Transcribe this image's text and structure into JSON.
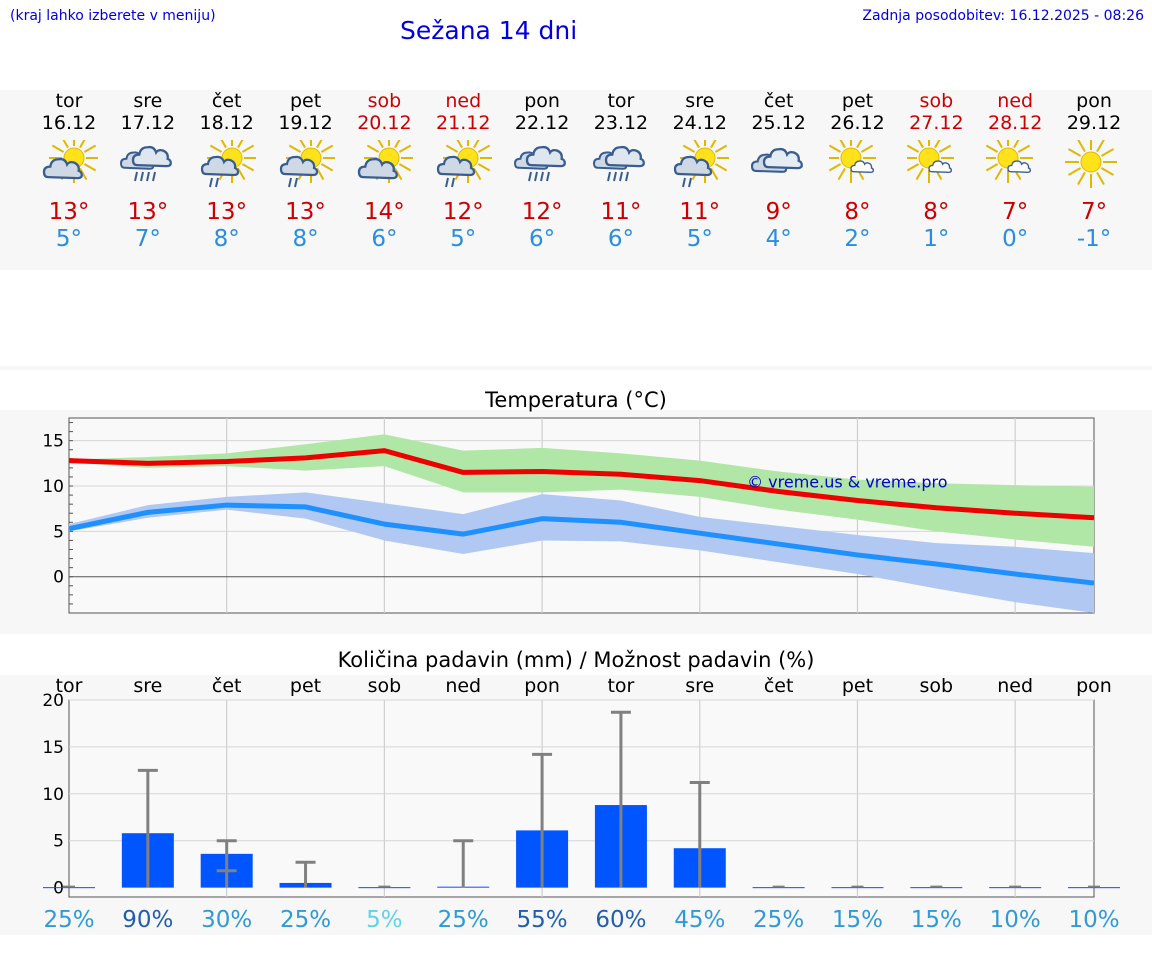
{
  "header": {
    "menu_hint": "(kraj lahko izberete v meniju)",
    "title": "Sežana 14 dni",
    "updated": "Zadnja posodobitev: 16.12.2025 - 08:26"
  },
  "days": [
    {
      "name": "tor",
      "date": "16.12",
      "weekend": false,
      "icon": "sun-cloud-icon",
      "max": "13°",
      "min": "5°"
    },
    {
      "name": "sre",
      "date": "17.12",
      "weekend": false,
      "icon": "rain-cloud-icon",
      "max": "13°",
      "min": "7°"
    },
    {
      "name": "čet",
      "date": "18.12",
      "weekend": false,
      "icon": "sun-rain-icon",
      "max": "13°",
      "min": "8°"
    },
    {
      "name": "pet",
      "date": "19.12",
      "weekend": false,
      "icon": "sun-rain-icon",
      "max": "13°",
      "min": "8°"
    },
    {
      "name": "sob",
      "date": "20.12",
      "weekend": true,
      "icon": "sun-cloud-icon",
      "max": "14°",
      "min": "6°"
    },
    {
      "name": "ned",
      "date": "21.12",
      "weekend": true,
      "icon": "sun-rain-icon",
      "max": "12°",
      "min": "5°"
    },
    {
      "name": "pon",
      "date": "22.12",
      "weekend": false,
      "icon": "rain-cloud-icon",
      "max": "12°",
      "min": "6°"
    },
    {
      "name": "tor",
      "date": "23.12",
      "weekend": false,
      "icon": "rain-cloud-icon",
      "max": "11°",
      "min": "6°"
    },
    {
      "name": "sre",
      "date": "24.12",
      "weekend": false,
      "icon": "sun-rain-icon",
      "max": "11°",
      "min": "5°"
    },
    {
      "name": "čet",
      "date": "25.12",
      "weekend": false,
      "icon": "cloud-icon",
      "max": "9°",
      "min": "4°"
    },
    {
      "name": "pet",
      "date": "26.12",
      "weekend": false,
      "icon": "sun-small-cloud-icon",
      "max": "8°",
      "min": "2°"
    },
    {
      "name": "sob",
      "date": "27.12",
      "weekend": true,
      "icon": "sun-small-cloud-icon",
      "max": "8°",
      "min": "1°"
    },
    {
      "name": "ned",
      "date": "28.12",
      "weekend": true,
      "icon": "sun-small-cloud-icon",
      "max": "7°",
      "min": "0°"
    },
    {
      "name": "pon",
      "date": "29.12",
      "weekend": false,
      "icon": "sun-icon",
      "max": "7°",
      "min": "-1°"
    }
  ],
  "colors": {
    "max_line": "#ee0000",
    "min_line": "#1e90ff",
    "max_band": "#b0e6a6",
    "min_band": "#b0c8f2",
    "bar": "#0055ff",
    "error": "#808080",
    "weekend": "#cc0000",
    "prob_high": "#1f5fb0",
    "prob_mid": "#2f9ad8",
    "prob_low": "#5ed4e6"
  },
  "chart_data": [
    {
      "type": "line",
      "title": "Temperatura (°C)",
      "x": [
        0,
        1,
        2,
        3,
        4,
        5,
        6,
        7,
        8,
        9,
        10,
        11,
        12,
        13
      ],
      "ylim": [
        -4,
        17.5
      ],
      "yticks": [
        0,
        5,
        10,
        15
      ],
      "watermark": "© vreme.us & vreme.pro",
      "series": [
        {
          "name": "max",
          "values": [
            12.8,
            12.5,
            12.7,
            13.1,
            13.9,
            11.5,
            11.6,
            11.3,
            10.6,
            9.4,
            8.4,
            7.6,
            7.0,
            6.5
          ]
        },
        {
          "name": "min",
          "values": [
            5.3,
            7.1,
            7.9,
            7.7,
            5.8,
            4.7,
            6.4,
            6.0,
            4.8,
            3.6,
            2.4,
            1.4,
            0.3,
            -0.7
          ]
        }
      ],
      "bands": [
        {
          "name": "max-range",
          "low": [
            12.6,
            12.0,
            12.2,
            11.7,
            12.2,
            9.3,
            9.3,
            9.6,
            8.8,
            7.4,
            6.3,
            5.0,
            4.1,
            3.3
          ],
          "high": [
            12.9,
            13.2,
            13.6,
            14.6,
            15.7,
            13.9,
            14.2,
            13.6,
            12.8,
            11.6,
            10.7,
            10.3,
            10.1,
            9.9
          ]
        },
        {
          "name": "min-range",
          "low": [
            5.0,
            6.5,
            7.4,
            6.4,
            4.0,
            2.5,
            4.0,
            3.9,
            2.9,
            1.6,
            0.3,
            -1.3,
            -2.8,
            -4.0
          ],
          "high": [
            5.8,
            7.9,
            8.8,
            9.3,
            8.1,
            6.9,
            9.1,
            8.4,
            6.6,
            5.6,
            4.6,
            3.7,
            3.3,
            2.6
          ]
        }
      ]
    },
    {
      "type": "bar",
      "title": "Količina padavin (mm) / Možnost padavin (%)",
      "categories": [
        "tor",
        "sre",
        "čet",
        "pet",
        "sob",
        "ned",
        "pon",
        "tor",
        "sre",
        "čet",
        "pet",
        "sob",
        "ned",
        "pon"
      ],
      "values": [
        0,
        5.8,
        3.6,
        0.5,
        0,
        0.1,
        6.1,
        8.8,
        4.2,
        0,
        0,
        0,
        0,
        0
      ],
      "error_high": [
        0,
        12.5,
        5.0,
        2.7,
        0,
        5.0,
        14.2,
        18.7,
        11.2,
        0,
        0,
        0,
        0,
        0
      ],
      "error_low": [
        0,
        0,
        1.8,
        0,
        0,
        0,
        0,
        0,
        0,
        0,
        0,
        0,
        0,
        0
      ],
      "probability": [
        "25%",
        "90%",
        "30%",
        "25%",
        "5%",
        "25%",
        "55%",
        "60%",
        "45%",
        "25%",
        "15%",
        "15%",
        "10%",
        "10%"
      ],
      "prob_values": [
        25,
        90,
        30,
        25,
        5,
        25,
        55,
        60,
        45,
        25,
        15,
        15,
        10,
        10
      ],
      "ylim": [
        -1,
        20
      ],
      "yticks": [
        0,
        5,
        10,
        15,
        20
      ]
    }
  ]
}
